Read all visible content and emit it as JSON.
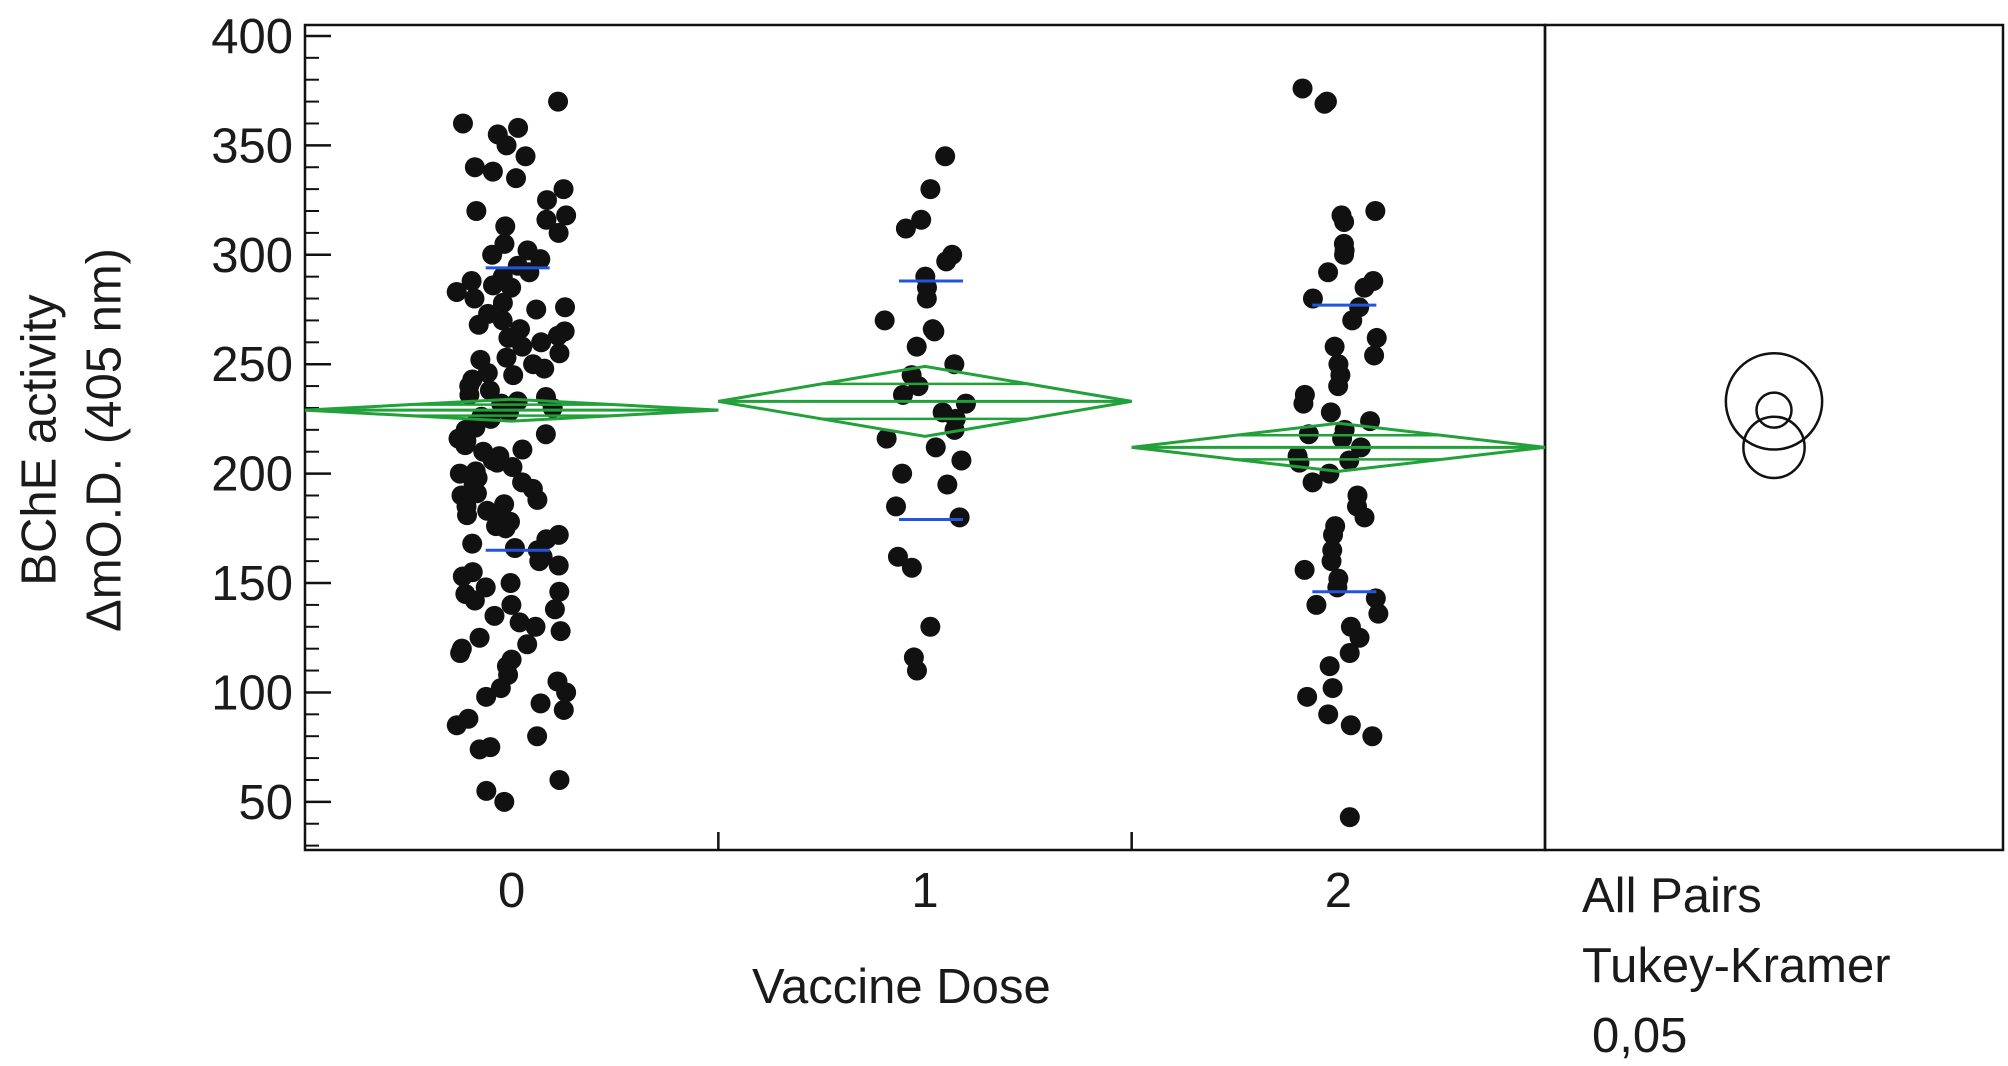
{
  "chart_data": {
    "type": "scatter",
    "title": "",
    "xlabel": "Vaccine Dose",
    "ylabel_lines": [
      "BChE activity",
      "ΔmO.D. (405 nm)"
    ],
    "categories": [
      "0",
      "1",
      "2"
    ],
    "ylim": [
      28,
      405
    ],
    "yticks": [
      50,
      100,
      150,
      200,
      250,
      300,
      350,
      400
    ],
    "grid": false,
    "comparison_panel": {
      "label_lines": [
        "All Pairs",
        "Tukey-Kramer",
        "0,05"
      ],
      "circles": [
        {
          "group": "0",
          "center": 229,
          "radius": 8
        },
        {
          "group": "1",
          "center": 233,
          "radius": 22
        },
        {
          "group": "2",
          "center": 212,
          "radius": 14
        }
      ]
    },
    "groups": [
      {
        "name": "0",
        "mean": 229,
        "ci": [
          224,
          234
        ],
        "sd_bars": [
          165,
          294
        ],
        "values": [
          370,
          360,
          358,
          355,
          350,
          345,
          340,
          338,
          335,
          330,
          325,
          320,
          318,
          316,
          313,
          310,
          305,
          302,
          300,
          298,
          295,
          292,
          290,
          288,
          286,
          285,
          283,
          280,
          278,
          276,
          275,
          273,
          270,
          268,
          266,
          265,
          263,
          262,
          260,
          258,
          255,
          253,
          252,
          250,
          248,
          246,
          245,
          243,
          240,
          238,
          236,
          235,
          233,
          232,
          230,
          228,
          226,
          225,
          223,
          221,
          220,
          218,
          216,
          215,
          213,
          211,
          210,
          208,
          206,
          205,
          203,
          201,
          200,
          198,
          196,
          195,
          193,
          191,
          190,
          188,
          186,
          185,
          183,
          181,
          180,
          178,
          176,
          175,
          172,
          170,
          168,
          166,
          165,
          162,
          160,
          158,
          155,
          153,
          150,
          148,
          146,
          145,
          142,
          140,
          138,
          135,
          132,
          130,
          128,
          125,
          122,
          120,
          118,
          115,
          112,
          108,
          105,
          102,
          100,
          98,
          95,
          92,
          88,
          85,
          80,
          75,
          74,
          60,
          55,
          50
        ]
      },
      {
        "name": "1",
        "mean": 233,
        "ci": [
          217,
          249
        ],
        "sd_bars": [
          179,
          288
        ],
        "values": [
          345,
          330,
          316,
          312,
          300,
          297,
          290,
          285,
          280,
          270,
          266,
          265,
          258,
          250,
          245,
          240,
          236,
          232,
          228,
          225,
          220,
          216,
          212,
          206,
          200,
          195,
          185,
          180,
          162,
          157,
          130,
          116,
          110
        ]
      },
      {
        "name": "2",
        "mean": 212,
        "ci": [
          201,
          223
        ],
        "sd_bars": [
          146,
          277
        ],
        "values": [
          376,
          370,
          369,
          320,
          318,
          315,
          305,
          302,
          300,
          292,
          288,
          285,
          280,
          276,
          270,
          262,
          258,
          254,
          250,
          245,
          240,
          236,
          232,
          228,
          224,
          220,
          218,
          216,
          212,
          208,
          206,
          205,
          200,
          196,
          190,
          185,
          180,
          176,
          172,
          165,
          160,
          156,
          152,
          148,
          143,
          140,
          136,
          130,
          125,
          118,
          112,
          102,
          98,
          90,
          85,
          80,
          43
        ]
      }
    ]
  },
  "style": {
    "point_color": "#111111",
    "diamond_color": "#22a03a",
    "sd_bar_color": "#2255dd",
    "axis_color": "#111111"
  }
}
